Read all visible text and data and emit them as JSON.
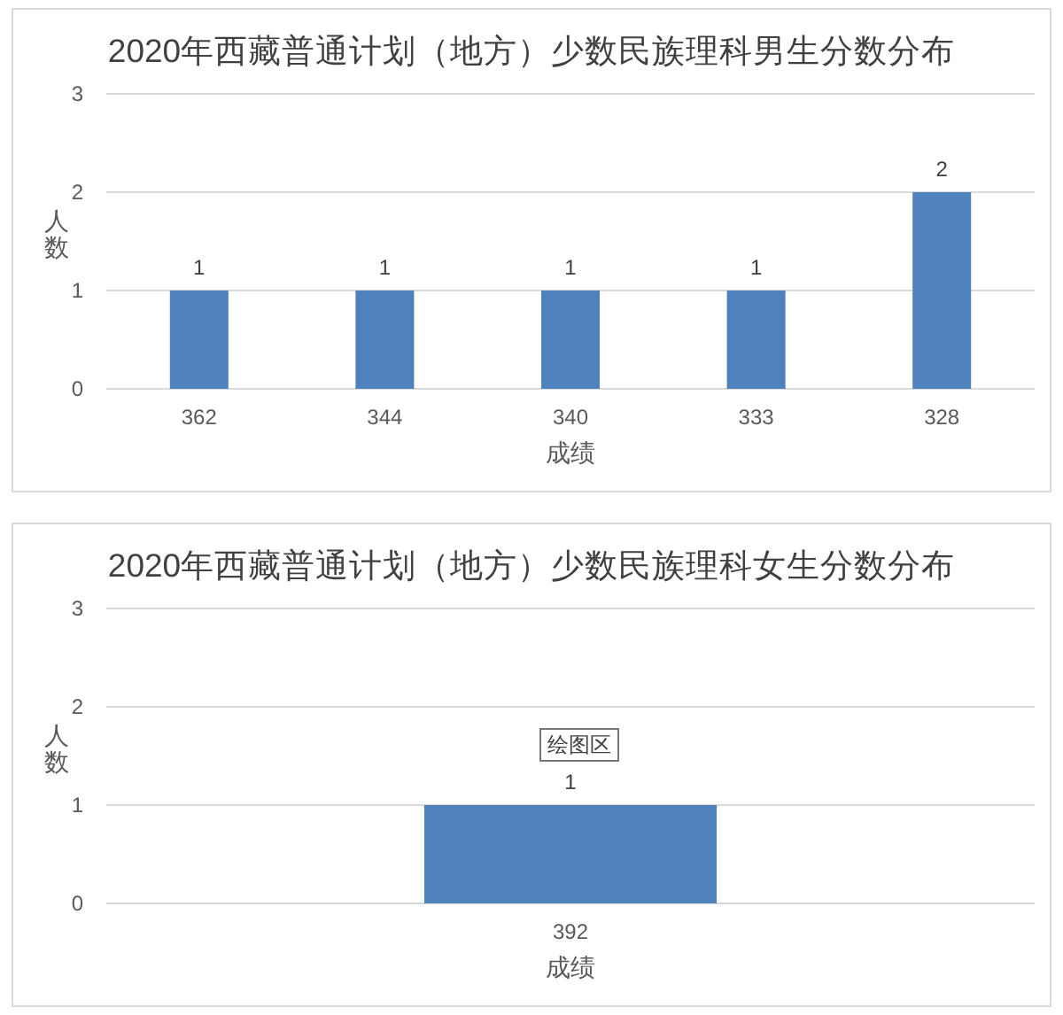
{
  "chart_data": [
    {
      "type": "bar",
      "title": "2020年西藏普通计划（地方）少数民族理科男生分数分布",
      "xlabel": "成绩",
      "ylabel": "人数",
      "categories": [
        "362",
        "344",
        "340",
        "333",
        "328"
      ],
      "values": [
        1,
        1,
        1,
        1,
        2
      ],
      "color": "#4f81bd",
      "ylim": [
        0,
        3
      ],
      "yticks": [
        0,
        1,
        2,
        3
      ],
      "grid": "y",
      "data_labels": true
    },
    {
      "type": "bar",
      "title": "2020年西藏普通计划（地方）少数民族理科女生分数分布",
      "xlabel": "成绩",
      "ylabel": "人数",
      "categories": [
        "392"
      ],
      "values": [
        1
      ],
      "color": "#4f81bd",
      "ylim": [
        0,
        3
      ],
      "yticks": [
        0,
        1,
        2,
        3
      ],
      "grid": "y",
      "data_labels": true,
      "annotations": [
        "绘图区"
      ]
    }
  ]
}
